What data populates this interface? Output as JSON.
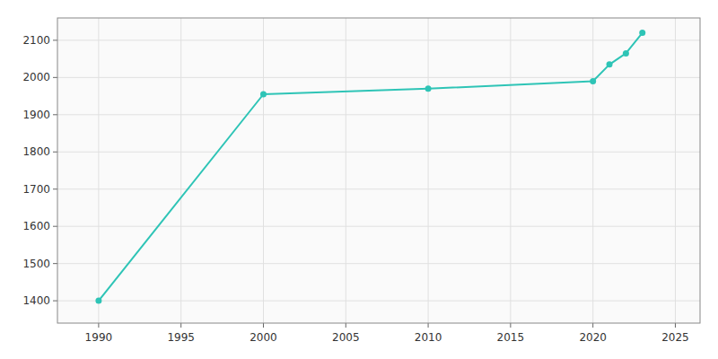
{
  "chart_data": {
    "type": "line",
    "x": [
      1990,
      2000,
      2010,
      2020,
      2021,
      2022,
      2023
    ],
    "values": [
      1400,
      1955,
      1970,
      1990,
      2035,
      2065,
      2120
    ],
    "color": "#2ec4b6",
    "marker": "circle",
    "xlim": [
      1987.5,
      2026.5
    ],
    "ylim": [
      1340,
      2160
    ],
    "xticks": [
      1990,
      1995,
      2000,
      2005,
      2010,
      2015,
      2020,
      2025
    ],
    "yticks": [
      1400,
      1500,
      1600,
      1700,
      1800,
      1900,
      2000,
      2100
    ],
    "grid": true
  }
}
